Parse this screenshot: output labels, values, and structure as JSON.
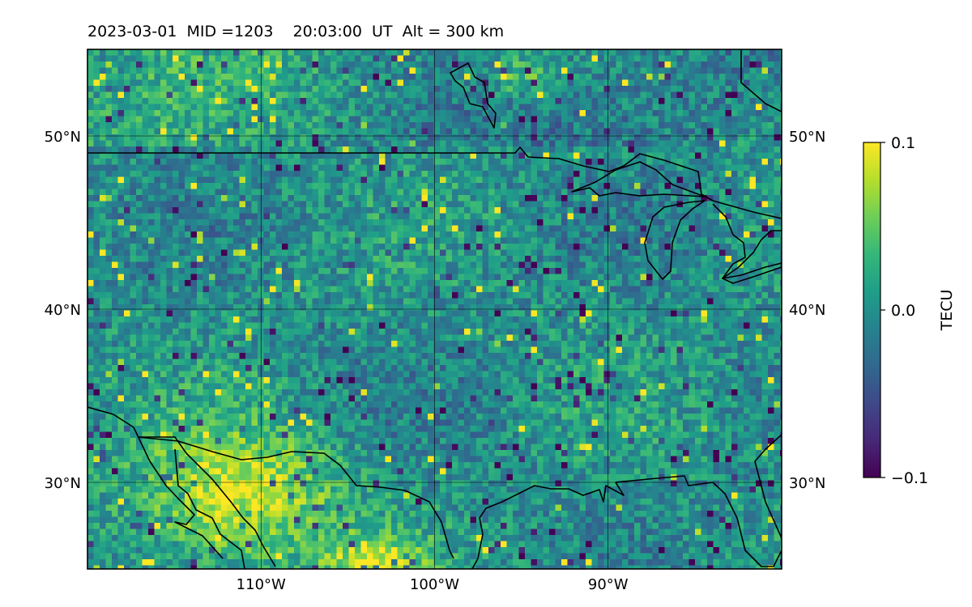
{
  "title": "2023-03-01  MID =1203    20:03:00  UT  Alt = 300 km",
  "chart_data": {
    "type": "heatmap",
    "projection": "plate-carree",
    "lon_range": [
      -120,
      -80
    ],
    "lat_range": [
      25,
      55
    ],
    "lon_ticks": [
      {
        "value": -110,
        "label": "110°W"
      },
      {
        "value": -100,
        "label": "100°W"
      },
      {
        "value": -90,
        "label": "90°W"
      }
    ],
    "lat_ticks": [
      {
        "value": 30,
        "label": "30°N"
      },
      {
        "value": 40,
        "label": "40°N"
      },
      {
        "value": 50,
        "label": "50°N"
      }
    ],
    "grid": true,
    "colormap": "viridis",
    "colorbar": {
      "label": "TECU",
      "min": -0.1,
      "max": 0.1,
      "ticks": [
        {
          "value": 0.1,
          "label": "0.1"
        },
        {
          "value": 0.0,
          "label": "0.0"
        },
        {
          "value": -0.1,
          "label": "−0.1"
        }
      ],
      "placement": "right"
    },
    "coastlines": true,
    "colors": {
      "viridis": [
        "#440154",
        "#482878",
        "#3e4989",
        "#31688e",
        "#26828e",
        "#1f9e89",
        "#35b779",
        "#6ece58",
        "#b5de2b",
        "#fde725"
      ]
    }
  }
}
